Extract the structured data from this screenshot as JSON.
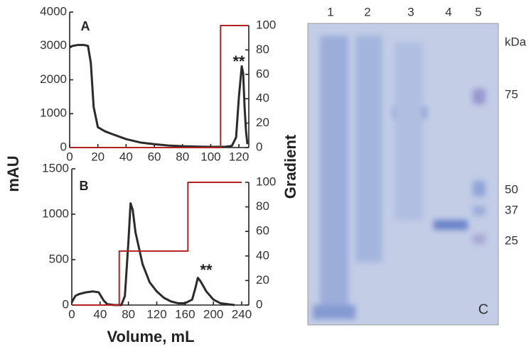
{
  "chart_data": [
    {
      "type": "line",
      "panel": "A",
      "annotation": "**",
      "xlim": [
        0,
        127
      ],
      "xticks": [
        0,
        20,
        40,
        60,
        80,
        100,
        120
      ],
      "ylim": [
        0,
        4000
      ],
      "yticks": [
        0,
        1000,
        2000,
        3000,
        4000
      ],
      "y2lim": [
        0,
        100
      ],
      "y2ticks": [
        0,
        20,
        40,
        60,
        80,
        100
      ],
      "series": [
        {
          "color": "#2b2b2b",
          "x": [
            0,
            2,
            6,
            10,
            13,
            15,
            17,
            20,
            25,
            30,
            40,
            50,
            60,
            70,
            80,
            90,
            100,
            110,
            115,
            118,
            120,
            122,
            123,
            124,
            125,
            126
          ],
          "values": [
            2950,
            3000,
            3030,
            3030,
            3000,
            2500,
            1200,
            600,
            480,
            400,
            250,
            150,
            100,
            60,
            40,
            30,
            20,
            20,
            50,
            300,
            1500,
            2400,
            2200,
            1200,
            500,
            100
          ]
        },
        {
          "color": "#b22222",
          "axis": "y2",
          "x": [
            0,
            107,
            107,
            126
          ],
          "values": [
            0,
            0,
            100,
            100
          ]
        }
      ]
    },
    {
      "type": "line",
      "panel": "B",
      "annotation": "**",
      "xlabel": "Volume, mL",
      "ylabel": "mAU",
      "y2label": "Gradient",
      "xlim": [
        0,
        250
      ],
      "xticks": [
        0,
        40,
        80,
        120,
        160,
        200,
        240
      ],
      "ylim": [
        0,
        1500
      ],
      "yticks": [
        0,
        500,
        1000,
        1500
      ],
      "y2lim": [
        0,
        100
      ],
      "y2ticks": [
        0,
        20,
        40,
        60,
        80,
        100
      ],
      "series": [
        {
          "color": "#2b2b2b",
          "x": [
            0,
            5,
            10,
            20,
            30,
            38,
            45,
            50,
            60,
            70,
            75,
            80,
            83,
            86,
            90,
            100,
            110,
            120,
            130,
            140,
            150,
            160,
            170,
            175,
            178,
            182,
            190,
            200,
            210,
            220,
            230
          ],
          "values": [
            30,
            100,
            120,
            140,
            150,
            140,
            50,
            10,
            0,
            0,
            100,
            700,
            1120,
            1050,
            800,
            450,
            250,
            150,
            80,
            40,
            20,
            20,
            60,
            200,
            300,
            260,
            150,
            60,
            20,
            10,
            0
          ]
        },
        {
          "color": "#b22222",
          "axis": "y2",
          "x": [
            0,
            67,
            67,
            164,
            164,
            240
          ],
          "values": [
            0,
            0,
            44,
            44,
            100,
            100
          ]
        }
      ]
    }
  ],
  "gel": {
    "lanes": [
      "1",
      "2",
      "3",
      "4",
      "5"
    ],
    "unit": "kDa",
    "markers": [
      "75",
      "50",
      "37",
      "25"
    ],
    "panel": "C"
  }
}
